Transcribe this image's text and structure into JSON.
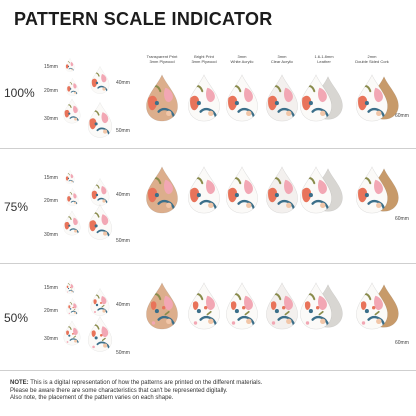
{
  "title": "PATTERN SCALE INDICATOR",
  "sections": [
    {
      "scale": "100%"
    },
    {
      "scale": "75%"
    },
    {
      "scale": "50%"
    }
  ],
  "size_labels": [
    "15mm",
    "20mm",
    "30mm",
    "40mm",
    "50mm"
  ],
  "material_columns": [
    {
      "line1": "Transparent Print",
      "line2": "3mm Plywood"
    },
    {
      "line1": "Bright Print",
      "line2": "3mm Plywood"
    },
    {
      "line1": "3mm",
      "line2": "White Acrylic"
    },
    {
      "line1": "3mm",
      "line2": "Clear Acrylic"
    },
    {
      "line1": "1.6-1.8mm",
      "line2": "Leather"
    },
    {
      "line1": "2mm",
      "line2": "Double Sided Cork"
    }
  ],
  "size_60": "60mm",
  "note": {
    "label": "NOTE:",
    "line1": " This is a digital representation of how the patterns are printed on the different materials.",
    "line2": "Please be aware there are some characteristics that can't be represented digitally.",
    "line3": "Also note, the placement of the pattern varies on each shape."
  },
  "colors": {
    "plywood": "#dcae8c",
    "white": "#fbfaf8",
    "clear": "#f3f0ee",
    "leather": "#d8d6d2",
    "cork": "#c79a6a",
    "pink": "#f2a7b4",
    "coral": "#e8735a",
    "teal": "#3b6f8a",
    "olive": "#8a8c4c",
    "peach": "#f1c6a8"
  }
}
